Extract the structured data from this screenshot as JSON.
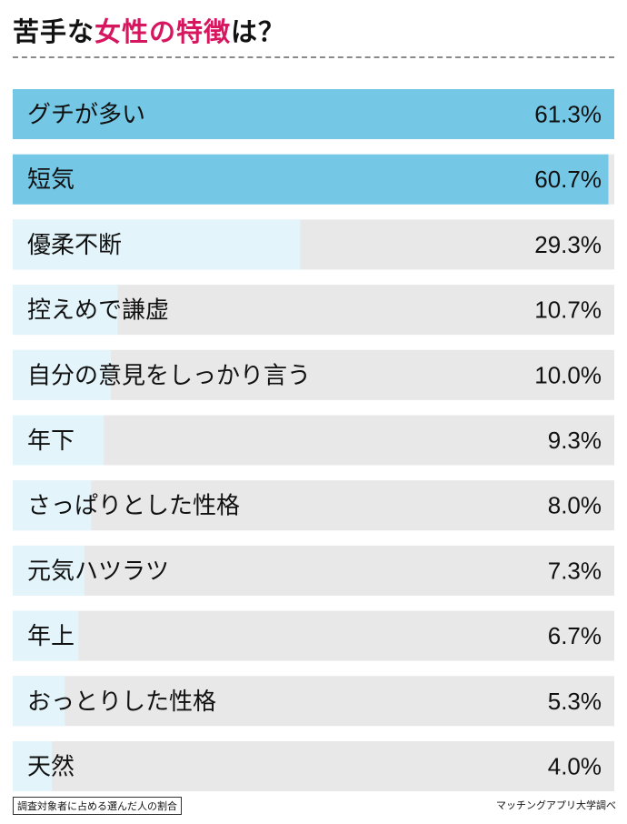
{
  "title": {
    "part1": "苦手な",
    "accent": "女性の特徴",
    "part2": "は？"
  },
  "footnote": "調査対象者に占める選んだ人の割合",
  "source": "マッチングアプリ大学調べ",
  "colors": {
    "top_bar": "#74c8e6",
    "normal_bar": "#e3f4fb",
    "track": "#e8e8e8",
    "accent_text": "#d6175f"
  },
  "chart_data": {
    "type": "bar",
    "orientation": "horizontal",
    "categories": [
      "グチが多い",
      "短気",
      "優柔不断",
      "控えめで謙虚",
      "自分の意見をしっかり言う",
      "年下",
      "さっぱりとした性格",
      "元気ハツラツ",
      "年上",
      "おっとりした性格",
      "天然"
    ],
    "values": [
      61.3,
      60.7,
      29.3,
      10.7,
      10.0,
      9.3,
      8.0,
      7.3,
      6.7,
      5.3,
      4.0
    ],
    "value_labels": [
      "61.3%",
      "60.7%",
      "29.3%",
      "10.7%",
      "10.0%",
      "9.3%",
      "8.0%",
      "7.3%",
      "6.7%",
      "5.3%",
      "4.0%"
    ],
    "xlim": [
      0,
      61.3
    ],
    "highlighted_top": 2
  }
}
